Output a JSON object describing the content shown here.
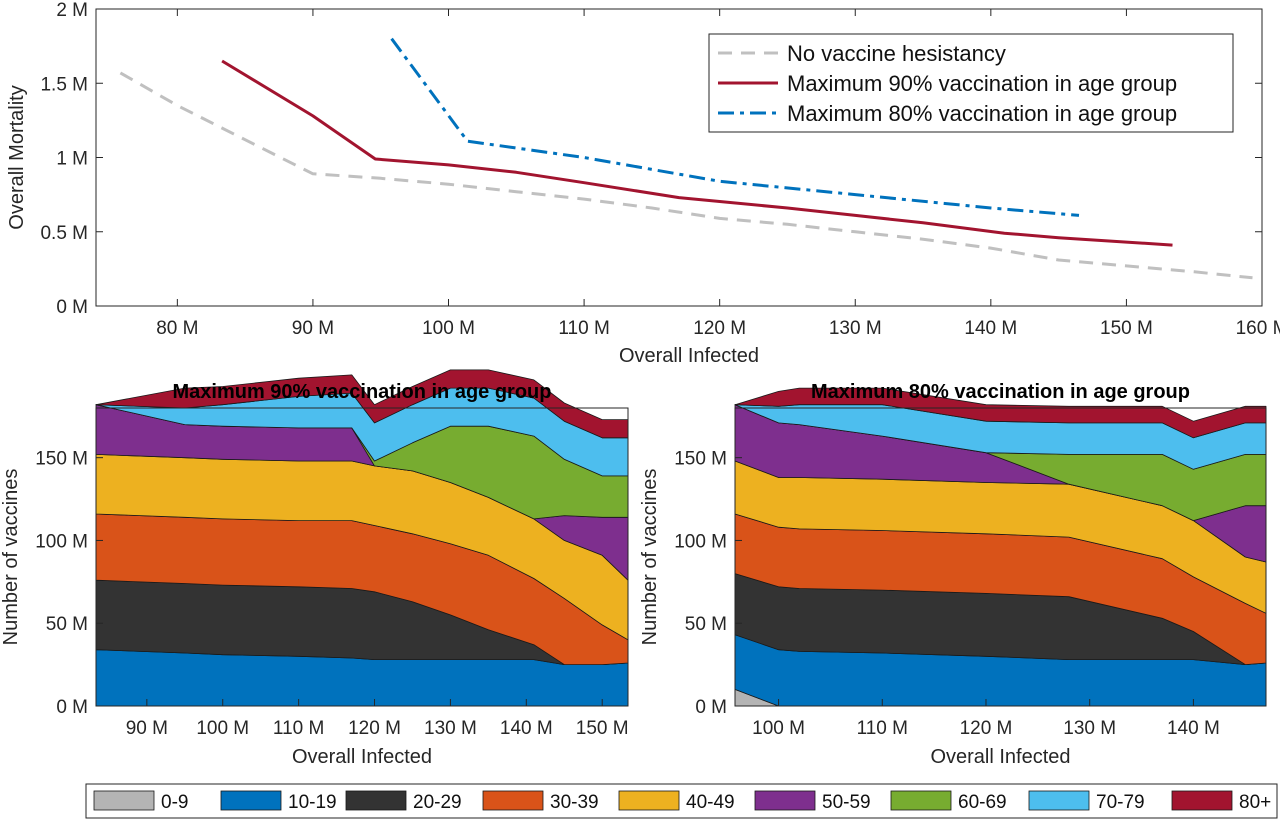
{
  "colors": {
    "no_hesitancy": "#c0c0c0",
    "max90": "#a2142f",
    "max80": "#0072bd",
    "age_groups": [
      "#b4b4b4",
      "#0072bd",
      "#333333",
      "#d95319",
      "#edb120",
      "#7e2f8e",
      "#77ac30",
      "#4dbeee",
      "#a2142f"
    ]
  },
  "chart_data": [
    {
      "type": "line",
      "title": "",
      "xlabel": "Overall Infected",
      "ylabel": "Overall Mortality",
      "xlim": [
        74,
        160
      ],
      "ylim": [
        0,
        2
      ],
      "xticks": [
        80,
        90,
        100,
        110,
        120,
        130,
        140,
        150,
        160
      ],
      "xtick_labels": [
        "80 M",
        "90 M",
        "100 M",
        "110 M",
        "120 M",
        "130 M",
        "140 M",
        "150 M",
        "160 M"
      ],
      "yticks": [
        0,
        0.5,
        1,
        1.5,
        2
      ],
      "ytick_labels": [
        "0 M",
        "0.5 M",
        "1 M",
        "1.5 M",
        "2 M"
      ],
      "grid": false,
      "legend": "top-right",
      "series": [
        {
          "name": "No vaccine hesistancy",
          "style": "dashed",
          "x": [
            75.8,
            80,
            85,
            90,
            95,
            100,
            105,
            110,
            115,
            120,
            125,
            130,
            135,
            140,
            145,
            150,
            155,
            159.3
          ],
          "y": [
            1.57,
            1.35,
            1.12,
            0.89,
            0.86,
            0.82,
            0.77,
            0.72,
            0.66,
            0.59,
            0.55,
            0.5,
            0.45,
            0.39,
            0.31,
            0.27,
            0.23,
            0.19
          ]
        },
        {
          "name": "Maximum 90% vaccination in age group",
          "style": "solid",
          "x": [
            83.3,
            90,
            94.6,
            100,
            105,
            110,
            117,
            125,
            130,
            135,
            141,
            145,
            150,
            153.4
          ],
          "y": [
            1.65,
            1.28,
            0.99,
            0.95,
            0.9,
            0.83,
            0.73,
            0.66,
            0.61,
            0.56,
            0.49,
            0.46,
            0.43,
            0.41
          ]
        },
        {
          "name": "Maximum 80% vaccination in age group",
          "style": "dashdot",
          "x": [
            95.8,
            101.4,
            110,
            120,
            130,
            140,
            146.5
          ],
          "y": [
            1.8,
            1.11,
            1.0,
            0.84,
            0.75,
            0.66,
            0.61
          ]
        }
      ]
    },
    {
      "type": "area",
      "title": "Maximum 90% vaccination in age group",
      "xlabel": "Overall Infected",
      "ylabel": "Number of vaccines",
      "xlim": [
        83.3,
        153.4
      ],
      "ylim": [
        0,
        180
      ],
      "xticks": [
        90,
        100,
        110,
        120,
        130,
        140,
        150
      ],
      "xtick_labels": [
        "90 M",
        "100 M",
        "110 M",
        "120 M",
        "130 M",
        "140 M",
        "150 M"
      ],
      "yticks": [
        0,
        50,
        100,
        150
      ],
      "ytick_labels": [
        "0 M",
        "50 M",
        "100 M",
        "150 M"
      ],
      "x": [
        83.3,
        95,
        100,
        110,
        117,
        120,
        125,
        130,
        135,
        141,
        145,
        150,
        153.4
      ],
      "series": [
        {
          "name": "0-9",
          "values": [
            0,
            0,
            0,
            0,
            0,
            0,
            0,
            0,
            0,
            0,
            0,
            0,
            0
          ]
        },
        {
          "name": "10-19",
          "values": [
            34,
            32,
            31,
            30,
            29,
            28,
            28,
            28,
            28,
            28,
            25,
            25,
            26
          ]
        },
        {
          "name": "20-29",
          "values": [
            42,
            42,
            42,
            42,
            42,
            41,
            35,
            27,
            18,
            9,
            0,
            0,
            0
          ]
        },
        {
          "name": "30-39",
          "values": [
            40,
            40,
            40,
            40,
            41,
            40,
            41,
            43,
            45,
            40,
            40,
            24,
            14
          ]
        },
        {
          "name": "40-49",
          "values": [
            36,
            36,
            36,
            36,
            36,
            36,
            38,
            37,
            35,
            36,
            35,
            42,
            36
          ]
        },
        {
          "name": "50-59",
          "values": [
            30,
            20,
            20,
            20,
            20,
            0,
            0,
            0,
            0,
            0,
            15,
            23,
            38
          ]
        },
        {
          "name": "60-69",
          "values": [
            0,
            0,
            0,
            0,
            0,
            3,
            17,
            34,
            43,
            50,
            34,
            25,
            25
          ]
        },
        {
          "name": "70-79",
          "values": [
            0,
            10,
            13,
            19,
            21,
            23,
            23,
            23,
            23,
            23,
            23,
            23,
            23
          ]
        },
        {
          "name": "80+",
          "values": [
            0,
            12,
            11,
            11,
            11,
            11,
            11,
            11,
            11,
            11,
            11,
            11,
            11
          ]
        }
      ]
    },
    {
      "type": "area",
      "title": "Maximum 80% vaccination in age group",
      "xlabel": "Overall Infected",
      "ylabel": "Number of vaccines",
      "xlim": [
        95.8,
        147
      ],
      "ylim": [
        0,
        180
      ],
      "xticks": [
        100,
        110,
        120,
        130,
        140
      ],
      "xtick_labels": [
        "100 M",
        "110 M",
        "120 M",
        "130 M",
        "140 M"
      ],
      "yticks": [
        0,
        50,
        100,
        150
      ],
      "ytick_labels": [
        "0 M",
        "50 M",
        "100 M",
        "150 M"
      ],
      "x": [
        95.8,
        100,
        102,
        110,
        120,
        128,
        137,
        140,
        145,
        147
      ],
      "series": [
        {
          "name": "0-9",
          "values": [
            10,
            0,
            0,
            0,
            0,
            0,
            0,
            0,
            0,
            0
          ]
        },
        {
          "name": "10-19",
          "values": [
            33,
            34,
            33,
            32,
            30,
            28,
            28,
            28,
            25,
            26
          ]
        },
        {
          "name": "20-29",
          "values": [
            37,
            38,
            38,
            38,
            38,
            38,
            25,
            17,
            0,
            0
          ]
        },
        {
          "name": "30-39",
          "values": [
            36,
            36,
            36,
            36,
            36,
            36,
            36,
            33,
            37,
            30
          ]
        },
        {
          "name": "40-49",
          "values": [
            32,
            30,
            31,
            31,
            31,
            32,
            32,
            34,
            28,
            31
          ]
        },
        {
          "name": "50-59",
          "values": [
            34,
            33,
            32,
            26,
            18,
            0,
            0,
            0,
            31,
            34
          ]
        },
        {
          "name": "60-69",
          "values": [
            0,
            0,
            0,
            0,
            0,
            18,
            31,
            31,
            31,
            31
          ]
        },
        {
          "name": "70-79",
          "values": [
            0,
            10,
            12,
            19,
            19,
            19,
            19,
            19,
            19,
            19
          ]
        },
        {
          "name": "80+",
          "values": [
            0,
            9,
            10,
            10,
            10,
            10,
            10,
            10,
            10,
            10
          ]
        }
      ]
    }
  ],
  "legend_bottom": [
    "0-9",
    "10-19",
    "20-29",
    "30-39",
    "40-49",
    "50-59",
    "60-69",
    "70-79",
    "80+"
  ]
}
